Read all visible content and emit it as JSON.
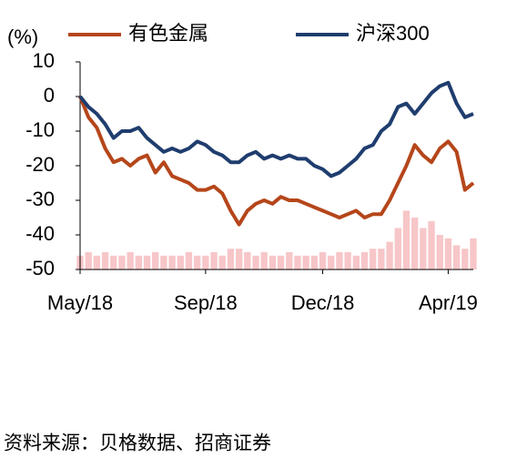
{
  "chart_data": {
    "type": "line",
    "y_label": "(%)",
    "source": "资料来源：贝格数据、招商证券",
    "categories": [
      "May/18",
      null,
      null,
      null,
      null,
      null,
      null,
      null,
      null,
      null,
      null,
      null,
      null,
      null,
      null,
      "Sep/18",
      null,
      null,
      null,
      null,
      null,
      null,
      null,
      null,
      null,
      null,
      null,
      null,
      null,
      "Dec/18",
      null,
      null,
      null,
      null,
      null,
      null,
      null,
      null,
      null,
      null,
      null,
      null,
      null,
      null,
      "Apr/19",
      null,
      null,
      null
    ],
    "series": [
      {
        "name": "有色金属",
        "color": "#b5461a",
        "values": [
          0,
          -6,
          -9,
          -15,
          -19,
          -18,
          -20,
          -18,
          -17,
          -22,
          -19,
          -23,
          -24,
          -25,
          -27,
          -27,
          -26,
          -28,
          -33,
          -37,
          -33,
          -31,
          -30,
          -31,
          -29,
          -30,
          -30,
          -31,
          -32,
          -33,
          -34,
          -35,
          -34,
          -33,
          -35,
          -34,
          -34,
          -30,
          -25,
          -20,
          -14,
          -17,
          -19,
          -15,
          -13,
          -16,
          -27,
          -25
        ]
      },
      {
        "name": "沪深300",
        "color": "#1f3d6e",
        "values": [
          0,
          -3,
          -5,
          -8,
          -12,
          -10,
          -10,
          -9,
          -12,
          -14,
          -16,
          -15,
          -16,
          -15,
          -13,
          -14,
          -16,
          -17,
          -19,
          -19,
          -17,
          -16,
          -18,
          -17,
          -18,
          -17,
          -18,
          -18,
          -20,
          -21,
          -23,
          -22,
          -20,
          -18,
          -15,
          -14,
          -10,
          -8,
          -3,
          -2,
          -5,
          -2,
          1,
          3,
          4,
          -2,
          -6,
          -5
        ]
      }
    ],
    "bar_series": {
      "color": "#f7c6c8",
      "values": [
        -46,
        -45,
        -46,
        -45,
        -46,
        -46,
        -45,
        -46,
        -46,
        -45,
        -46,
        -46,
        -46,
        -45,
        -46,
        -46,
        -45,
        -46,
        -44,
        -44,
        -45,
        -46,
        -45,
        -46,
        -46,
        -45,
        -46,
        -46,
        -46,
        -45,
        -46,
        -45,
        -45,
        -46,
        -45,
        -44,
        -44,
        -42,
        -38,
        -33,
        -35,
        -38,
        -36,
        -40,
        -41,
        -43,
        -44,
        -41
      ]
    },
    "ylim": [
      -50,
      10
    ],
    "yticks": [
      10,
      0,
      -10,
      -20,
      -30,
      -40,
      -50
    ]
  }
}
